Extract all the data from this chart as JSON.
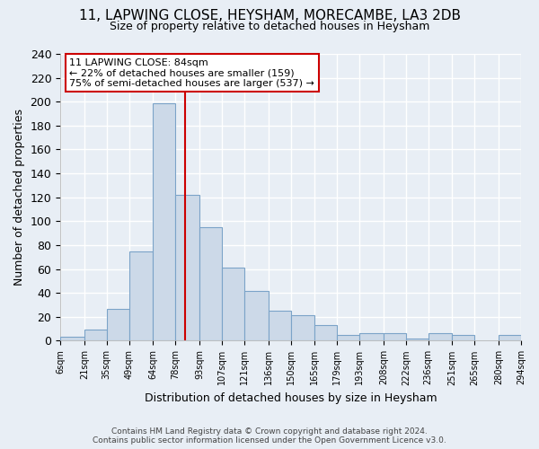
{
  "title_line1": "11, LAPWING CLOSE, HEYSHAM, MORECAMBE, LA3 2DB",
  "title_line2": "Size of property relative to detached houses in Heysham",
  "xlabel": "Distribution of detached houses by size in Heysham",
  "ylabel": "Number of detached properties",
  "bin_labels": [
    "6sqm",
    "21sqm",
    "35sqm",
    "49sqm",
    "64sqm",
    "78sqm",
    "93sqm",
    "107sqm",
    "121sqm",
    "136sqm",
    "150sqm",
    "165sqm",
    "179sqm",
    "193sqm",
    "208sqm",
    "222sqm",
    "236sqm",
    "251sqm",
    "265sqm",
    "280sqm",
    "294sqm"
  ],
  "bar_values": [
    3,
    9,
    27,
    75,
    199,
    122,
    95,
    61,
    42,
    25,
    21,
    13,
    5,
    6,
    6,
    2,
    6,
    5,
    0,
    5
  ],
  "bar_left_edges": [
    6,
    21,
    35,
    49,
    64,
    78,
    93,
    107,
    121,
    136,
    150,
    165,
    179,
    193,
    208,
    222,
    236,
    251,
    265,
    280
  ],
  "bar_widths": [
    15,
    14,
    14,
    15,
    14,
    15,
    14,
    14,
    15,
    14,
    15,
    14,
    14,
    15,
    14,
    14,
    15,
    14,
    15,
    14
  ],
  "bar_color": "#ccd9e8",
  "bar_edge_color": "#7ba3c8",
  "vline_x": 84,
  "vline_color": "#cc0000",
  "annotation_text_line1": "11 LAPWING CLOSE: 84sqm",
  "annotation_text_line2": "← 22% of detached houses are smaller (159)",
  "annotation_text_line3": "75% of semi-detached houses are larger (537) →",
  "ylim": [
    0,
    240
  ],
  "yticks": [
    0,
    20,
    40,
    60,
    80,
    100,
    120,
    140,
    160,
    180,
    200,
    220,
    240
  ],
  "footer_line1": "Contains HM Land Registry data © Crown copyright and database right 2024.",
  "footer_line2": "Contains public sector information licensed under the Open Government Licence v3.0.",
  "bg_color": "#e8eef5",
  "plot_bg_color": "#e8eef5",
  "grid_color": "#ffffff",
  "title_fontsize": 11,
  "subtitle_fontsize": 9,
  "ylabel_fontsize": 9,
  "xlabel_fontsize": 9
}
